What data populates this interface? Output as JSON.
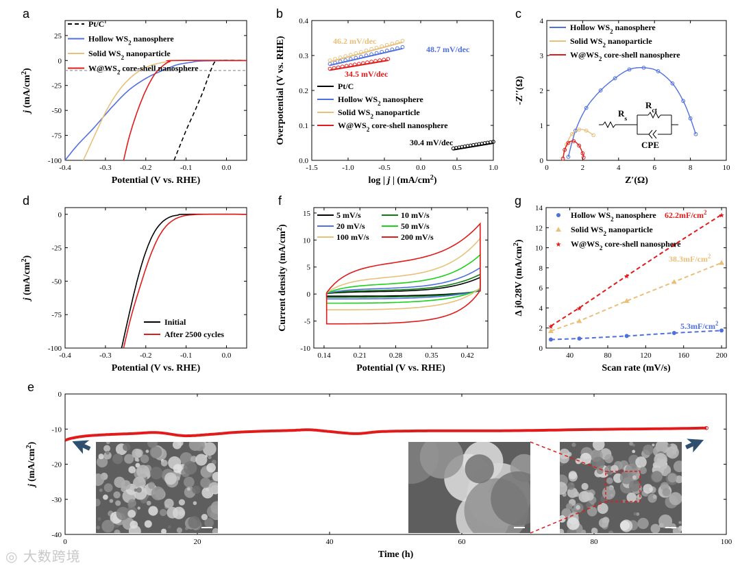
{
  "colors": {
    "black": "#000000",
    "blue": "#4f6fe0",
    "gold": "#e8c07a",
    "red": "#e11a1a",
    "green": "#19d219",
    "darkgreen": "#0c7c0c",
    "dash": "#999999"
  },
  "watermark": "大数跨境",
  "chart_data": [
    {
      "panel": "a",
      "type": "line",
      "xlabel": "Potential (V vs. RHE)",
      "ylabel": "j (mA/cm²)",
      "xlim": [
        -0.4,
        0.05
      ],
      "ylim": [
        -100,
        40
      ],
      "xticks": [
        -0.4,
        -0.3,
        -0.2,
        -0.1,
        0.0
      ],
      "xticklabels": [
        "-0.4",
        "-0.3",
        "-0.2",
        "-0.1",
        "0.0"
      ],
      "yticks": [
        -100,
        -75,
        -50,
        -25,
        0,
        25
      ],
      "yticklabels": [
        "-100",
        "-75",
        "-50",
        "-25",
        "0",
        "25"
      ],
      "reference_line": -10,
      "series": [
        {
          "name": "Pt/C",
          "color": "black",
          "dash": "6,4",
          "x": [
            -0.13,
            -0.1,
            -0.08,
            -0.06,
            -0.05,
            -0.04,
            -0.03,
            -0.02,
            0.05
          ],
          "y": [
            -100,
            -70,
            -52,
            -33,
            -22,
            -11,
            -2,
            0,
            0
          ]
        },
        {
          "name": "Hollow WS2 nanosphere",
          "color": "blue",
          "x": [
            -0.4,
            -0.37,
            -0.33,
            -0.28,
            -0.24,
            -0.2,
            -0.17,
            -0.14,
            -0.12,
            -0.09,
            -0.06,
            0.05
          ],
          "y": [
            -100,
            -85,
            -68,
            -45,
            -29,
            -18,
            -12,
            -7,
            -4,
            -2,
            -0.5,
            0
          ]
        },
        {
          "name": "Solid WS2 nanoparticle",
          "color": "gold",
          "x": [
            -0.355,
            -0.33,
            -0.3,
            -0.27,
            -0.24,
            -0.21,
            -0.18,
            -0.15,
            -0.12,
            0.05
          ],
          "y": [
            -100,
            -78,
            -52,
            -32,
            -18,
            -9,
            -4,
            -1.5,
            0,
            0
          ]
        },
        {
          "name": "W@WS2 core-shell nanosphere",
          "color": "red",
          "x": [
            -0.255,
            -0.24,
            -0.22,
            -0.2,
            -0.18,
            -0.165,
            -0.15,
            -0.14,
            -0.13,
            0.05
          ],
          "y": [
            -100,
            -75,
            -50,
            -30,
            -15,
            -8,
            -3,
            -1,
            0,
            0
          ]
        }
      ]
    },
    {
      "panel": "b",
      "type": "line",
      "xlabel": "log | j | (mA/cm²)",
      "ylabel": "Overpotential (V vs. RHE)",
      "xlim": [
        -1.5,
        1.0
      ],
      "ylim": [
        0.0,
        0.4
      ],
      "xticks": [
        -1.5,
        -1.0,
        -0.5,
        0.0,
        0.5,
        1.0
      ],
      "xticklabels": [
        "-1.5",
        "-1.0",
        "-0.5",
        "0.0",
        "0.5",
        "1.0"
      ],
      "yticks": [
        0.0,
        0.1,
        0.2,
        0.3,
        0.4
      ],
      "yticklabels": [
        "0.0",
        "0.1",
        "0.2",
        "0.3",
        "0.4"
      ],
      "annotations": [
        "46.2 mV/dec",
        "48.7 mV/dec",
        "34.5 mV/dec",
        "30.4 mV/dec"
      ],
      "series": [
        {
          "name": "Pt/C",
          "color": "black",
          "x": [
            0.45,
            1.0
          ],
          "y": [
            0.03,
            0.049
          ]
        },
        {
          "name": "Hollow WS2 nanosphere",
          "color": "blue",
          "x": [
            -1.25,
            -0.25
          ],
          "y": [
            0.272,
            0.32
          ]
        },
        {
          "name": "Solid WS2 nanoparticle",
          "color": "gold",
          "x": [
            -1.25,
            -0.25
          ],
          "y": [
            0.282,
            0.338
          ]
        },
        {
          "name": "W@WS2 core-shell nanosphere",
          "color": "red",
          "x": [
            -1.25,
            -0.45
          ],
          "y": [
            0.258,
            0.286
          ]
        }
      ]
    },
    {
      "panel": "c",
      "type": "scatter",
      "xlabel": "Z′(Ω)",
      "ylabel": "-Z′′(Ω)",
      "xlim": [
        0,
        10
      ],
      "ylim": [
        0,
        4
      ],
      "xticks": [
        0,
        2,
        4,
        6,
        8,
        10
      ],
      "xticklabels": [
        "0",
        "2",
        "4",
        "6",
        "8",
        "10"
      ],
      "yticks": [
        0,
        1,
        2,
        3,
        4
      ],
      "yticklabels": [
        "0",
        "1",
        "2",
        "3",
        "4"
      ],
      "circuit": {
        "r1": "R",
        "r1_sub": "s",
        "r2": "R",
        "r2_sub": "ct",
        "cpe": "CPE"
      },
      "series": [
        {
          "name": "Hollow WS2 nanosphere",
          "color": "blue",
          "x": [
            1.2,
            1.6,
            2.2,
            3.0,
            3.8,
            4.6,
            5.4,
            6.2,
            7.0,
            7.6,
            8.0,
            8.3
          ],
          "y": [
            0.1,
            0.85,
            1.5,
            2.0,
            2.35,
            2.6,
            2.65,
            2.55,
            2.2,
            1.7,
            1.2,
            0.75
          ]
        },
        {
          "name": "Solid WS2 nanoparticle",
          "color": "gold",
          "x": [
            0.9,
            1.1,
            1.4,
            1.8,
            2.2,
            2.6
          ],
          "y": [
            0.05,
            0.45,
            0.75,
            0.88,
            0.85,
            0.72
          ]
        },
        {
          "name": "W@WS2 core-shell nanosphere",
          "color": "red",
          "x": [
            0.9,
            1.0,
            1.2,
            1.5,
            1.8,
            2.0,
            2.05
          ],
          "y": [
            0.05,
            0.3,
            0.5,
            0.55,
            0.42,
            0.2,
            0.08
          ]
        }
      ]
    },
    {
      "panel": "d",
      "type": "line",
      "xlabel": "Potential (V vs. RHE)",
      "ylabel": "j (mA/cm²)",
      "xlim": [
        -0.4,
        0.05
      ],
      "ylim": [
        -100,
        5
      ],
      "xticks": [
        -0.4,
        -0.3,
        -0.2,
        -0.1,
        0.0
      ],
      "xticklabels": [
        "-0.4",
        "-0.3",
        "-0.2",
        "-0.1",
        "0.0"
      ],
      "yticks": [
        -100,
        -75,
        -50,
        -25,
        0
      ],
      "yticklabels": [
        "-100",
        "-75",
        "-50",
        "-25",
        "0"
      ],
      "series": [
        {
          "name": "Initial",
          "color": "black",
          "x": [
            -0.26,
            -0.24,
            -0.22,
            -0.2,
            -0.18,
            -0.16,
            -0.14,
            -0.12,
            -0.1,
            0.05
          ],
          "y": [
            -100,
            -73,
            -48,
            -28,
            -14,
            -6,
            -2,
            -0.6,
            0,
            0
          ]
        },
        {
          "name": "After 2500 cycles",
          "color": "red",
          "x": [
            -0.255,
            -0.235,
            -0.21,
            -0.19,
            -0.17,
            -0.15,
            -0.13,
            -0.11,
            -0.09,
            -0.05,
            0.05
          ],
          "y": [
            -100,
            -75,
            -50,
            -32,
            -18,
            -9,
            -4,
            -1.5,
            -0.5,
            0,
            0
          ]
        }
      ]
    },
    {
      "panel": "f",
      "type": "line",
      "xlabel": "Potential (V vs. RHE)",
      "ylabel": "Current density (mA/cm²)",
      "xlim": [
        0.12,
        0.46
      ],
      "ylim": [
        -10,
        16
      ],
      "xticks": [
        0.14,
        0.21,
        0.28,
        0.35,
        0.42
      ],
      "xticklabels": [
        "0.14",
        "0.21",
        "0.28",
        "0.35",
        "0.42"
      ],
      "yticks": [
        -10,
        -5,
        0,
        5,
        10,
        15
      ],
      "yticklabels": [
        "-10",
        "-5",
        "0",
        "5",
        "10",
        "15"
      ],
      "series": [
        {
          "name": "5 mV/s",
          "color": "black",
          "amp": 0.6,
          "tail": 2.5,
          "start": 0.3
        },
        {
          "name": "10 mV/s",
          "color": "darkgreen",
          "amp": 0.9,
          "tail": 2.8,
          "start": 0.4
        },
        {
          "name": "20 mV/s",
          "color": "blue",
          "amp": 1.4,
          "tail": 3.6,
          "start": 0.5
        },
        {
          "name": "50 mV/s",
          "color": "green",
          "amp": 2.6,
          "tail": 5.0,
          "start": 0.6
        },
        {
          "name": "100 mV/s",
          "color": "gold",
          "amp": 4.5,
          "tail": 6.5,
          "start": 0.7
        },
        {
          "name": "200 mV/s",
          "color": "red",
          "amp": 8.5,
          "tail": 6.0,
          "start": 0.8
        }
      ]
    },
    {
      "panel": "g",
      "type": "scatter",
      "xlabel": "Scan rate (mV/s)",
      "ylabel": "Δ j0.28V (mA/cm²)",
      "xlim": [
        15,
        205
      ],
      "ylim": [
        0,
        14
      ],
      "xticks": [
        40,
        80,
        120,
        160,
        200
      ],
      "xticklabels": [
        "40",
        "80",
        "120",
        "160",
        "200"
      ],
      "yticks": [
        0,
        2,
        4,
        6,
        8,
        10,
        12,
        14
      ],
      "yticklabels": [
        "0",
        "2",
        "4",
        "6",
        "8",
        "10",
        "12",
        "14"
      ],
      "series": [
        {
          "name": "Hollow WS2 nanosphere",
          "color": "blue",
          "marker": "circle",
          "x": [
            20,
            50,
            100,
            150,
            200
          ],
          "y": [
            0.85,
            0.95,
            1.2,
            1.5,
            1.75
          ],
          "label": "5.3mF/cm²"
        },
        {
          "name": "Solid WS2 nanoparticle",
          "color": "gold",
          "marker": "triangle",
          "x": [
            20,
            50,
            100,
            150,
            200
          ],
          "y": [
            1.7,
            2.7,
            4.7,
            6.6,
            8.5
          ],
          "label": "38.3mF/cm²"
        },
        {
          "name": "W@WS2 core-shell nanosphere",
          "color": "red",
          "marker": "star",
          "x": [
            20,
            50,
            100,
            150,
            200
          ],
          "y": [
            2.2,
            4.0,
            7.2,
            10.3,
            13.3
          ],
          "label": "62.2mF/cm²"
        }
      ]
    },
    {
      "panel": "e",
      "type": "line",
      "xlabel": "Time (h)",
      "ylabel": "j (mA/cm²)",
      "xlim": [
        0,
        100
      ],
      "ylim": [
        -40,
        0
      ],
      "xticks": [
        0,
        20,
        40,
        60,
        80,
        100
      ],
      "xticklabels": [
        "0",
        "20",
        "40",
        "60",
        "80",
        "100"
      ],
      "yticks": [
        -40,
        -30,
        -20,
        -10,
        0
      ],
      "yticklabels": [
        "-40",
        "-30",
        "-20",
        "-10",
        "0"
      ],
      "series": [
        {
          "name": "W@WS2 core-shell nanosphere",
          "color": "red",
          "x": [
            0,
            1,
            3,
            6,
            10,
            14,
            18,
            22,
            26,
            30,
            34,
            37,
            40,
            44,
            48,
            55,
            62,
            70,
            80,
            90,
            97
          ],
          "y": [
            -13.2,
            -12.6,
            -12.0,
            -11.6,
            -11.3,
            -11.0,
            -11.9,
            -11.5,
            -10.9,
            -10.6,
            -10.4,
            -10.2,
            -10.7,
            -11.3,
            -10.7,
            -10.5,
            -10.5,
            -10.4,
            -10.1,
            -9.9,
            -9.7
          ]
        }
      ]
    }
  ]
}
